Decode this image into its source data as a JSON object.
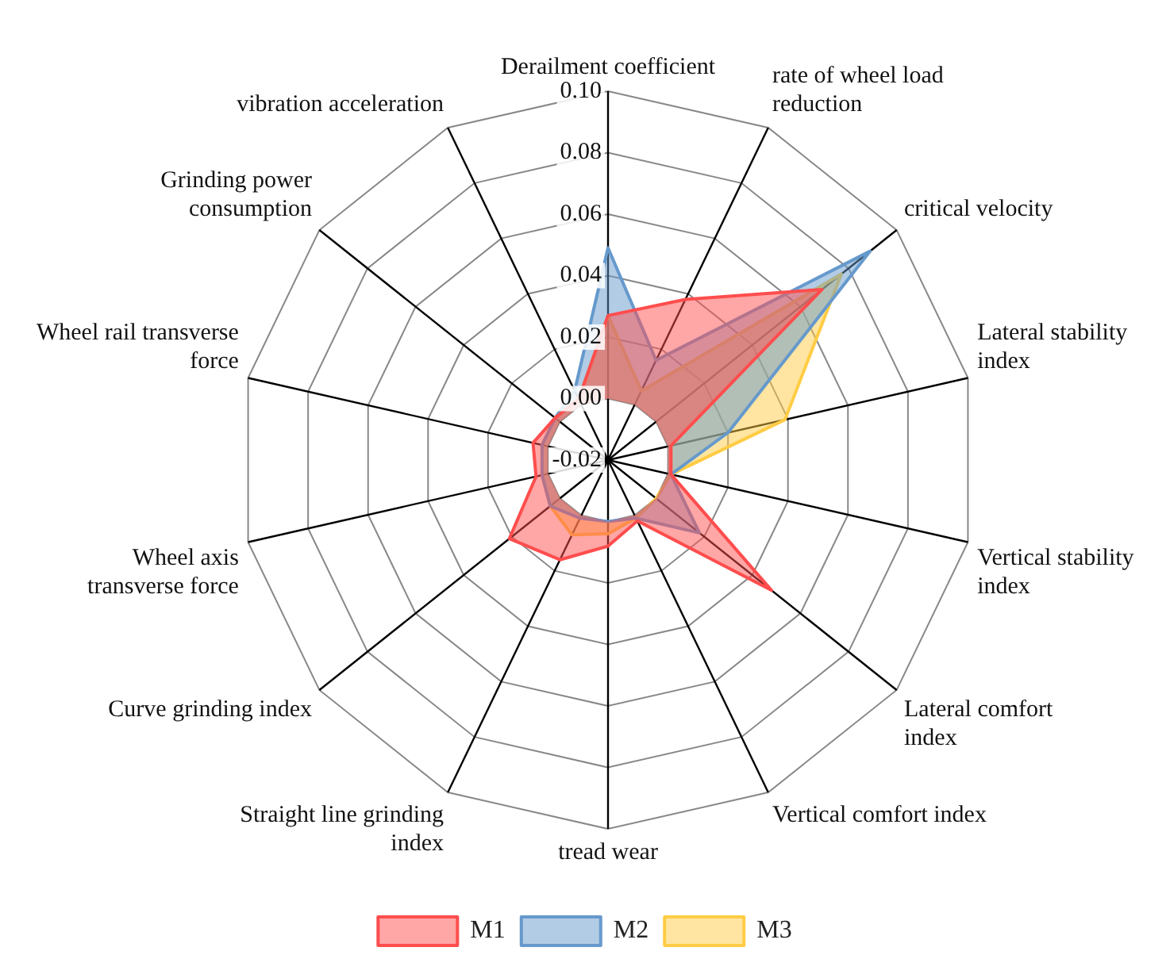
{
  "chart_data": {
    "type": "radar",
    "categories": [
      "Derailment coefficient",
      "rate of wheel load reduction",
      "critical velocity",
      "Lateral stability index",
      "Vertical stability index",
      "Lateral comfort index",
      "Vertical comfort index",
      "tread wear",
      "Straight line grinding index",
      "Curve grinding index",
      "Wheel axis transverse force",
      "Wheel rail transverse force",
      "Grinding power consumption",
      "vibration acceleration"
    ],
    "series": [
      {
        "name": "M1",
        "color": "#ff4d4d",
        "values": [
          0.027,
          0.038,
          0.069,
          0.001,
          0.001,
          0.048,
          0.002,
          0.008,
          0.016,
          0.021,
          0.004,
          0.005,
          0.002,
          0.002
        ]
      },
      {
        "name": "M2",
        "color": "#6699cc",
        "values": [
          0.049,
          0.016,
          0.089,
          0.02,
          0.001,
          0.018,
          0.001,
          0.0,
          0.001,
          0.004,
          0.002,
          0.002,
          0.002,
          0.005
        ]
      },
      {
        "name": "M3",
        "color": "#ffcc44",
        "values": [
          0.027,
          0.005,
          0.077,
          0.039,
          0.001,
          0.0,
          0.001,
          0.004,
          0.007,
          0.004,
          0.002,
          0.002,
          0.002,
          0.002
        ]
      }
    ],
    "ylim": [
      -0.02,
      0.1
    ],
    "yticks": [
      -0.02,
      {
        "value": 0,
        "label": "0.00"
      },
      0.02,
      0.04,
      0.06,
      0.08,
      {
        "value": 0.1,
        "label": "0.10"
      }
    ],
    "grid": true,
    "legend": "bottom",
    "marker": "none",
    "line_style": "solid"
  }
}
